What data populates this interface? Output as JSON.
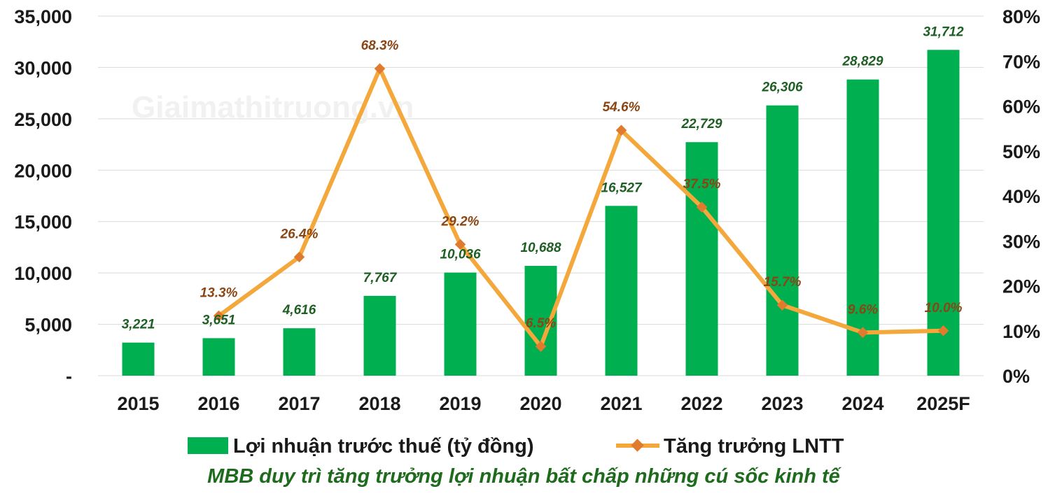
{
  "watermark": "Giaimathitruong.vn",
  "caption": "MBB duy trì tăng trưởng lợi nhuận bất chấp những cú sốc kinh tế",
  "colors": {
    "bar": "#00b050",
    "line": "#f4a73a",
    "marker": "#e07b2e",
    "bar_label": "#1e5f24",
    "line_label": "#8b4513",
    "caption": "#1e6b1e",
    "grid": "#d9d9d9"
  },
  "chart_data": {
    "type": "bar",
    "categories": [
      "2015",
      "2016",
      "2017",
      "2018",
      "2019",
      "2020",
      "2021",
      "2022",
      "2023",
      "2024",
      "2025F"
    ],
    "series": [
      {
        "name": "Lợi nhuận trước thuế (tỷ đồng)",
        "type": "bar",
        "axis": "left",
        "values": [
          3221,
          3651,
          4616,
          7767,
          10036,
          10688,
          16527,
          22729,
          26306,
          28829,
          31712
        ],
        "labels": [
          "3,221",
          "3,651",
          "4,616",
          "7,767",
          "10,036",
          "10,688",
          "16,527",
          "22,729",
          "26,306",
          "28,829",
          "31,712"
        ]
      },
      {
        "name": "Tăng trưởng LNTT",
        "type": "line",
        "axis": "right",
        "values": [
          null,
          13.3,
          26.4,
          68.3,
          29.2,
          6.5,
          54.6,
          37.5,
          15.7,
          9.6,
          10.0
        ],
        "labels": [
          "",
          "13.3%",
          "26.4%",
          "68.3%",
          "29.2%",
          "6.5%",
          "54.6%",
          "37.5%",
          "15.7%",
          "9.6%",
          "10.0%"
        ]
      }
    ],
    "y_left": {
      "min": 0,
      "max": 35000,
      "ticks": [
        "-",
        "5,000",
        "10,000",
        "15,000",
        "20,000",
        "25,000",
        "30,000",
        "35,000"
      ]
    },
    "y_right": {
      "min": 0,
      "max": 80,
      "ticks": [
        "0%",
        "10%",
        "20%",
        "30%",
        "40%",
        "50%",
        "60%",
        "70%",
        "80%"
      ]
    },
    "grid": true,
    "legend_position": "bottom"
  }
}
